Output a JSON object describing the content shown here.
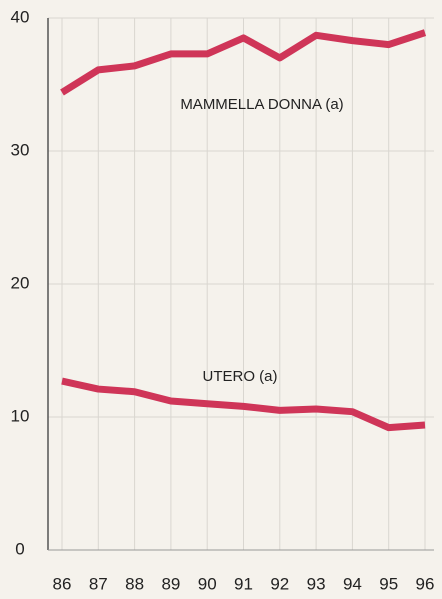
{
  "chart_data": {
    "type": "line",
    "categories": [
      "86",
      "87",
      "88",
      "89",
      "90",
      "91",
      "92",
      "93",
      "94",
      "95",
      "96"
    ],
    "series": [
      {
        "name": "MAMMELLA DONNA (a)",
        "color": "#cf3558",
        "values": [
          34.4,
          36.1,
          36.4,
          37.3,
          37.3,
          38.5,
          37.0,
          38.7,
          38.3,
          38.0,
          38.9
        ]
      },
      {
        "name": "UTERO (a)",
        "color": "#cf3558",
        "values": [
          12.7,
          12.1,
          11.9,
          11.2,
          11.0,
          10.8,
          10.5,
          10.6,
          10.4,
          9.2,
          9.4
        ]
      }
    ],
    "ylim": [
      0,
      40
    ],
    "yticks": [
      0,
      10,
      20,
      30,
      40
    ],
    "grid": true
  }
}
